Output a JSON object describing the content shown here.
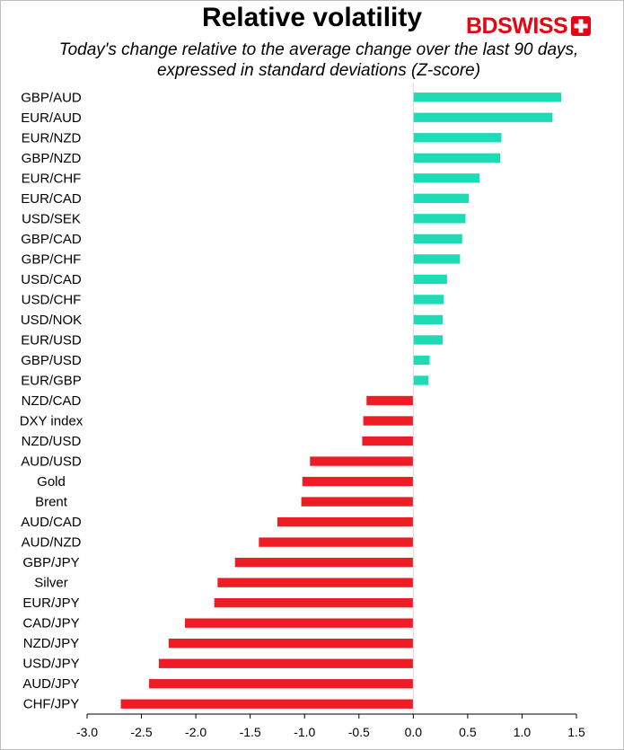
{
  "logo": {
    "text": "BDSWISS"
  },
  "colors": {
    "positive": "#1ddcb5",
    "negative": "#ee1c25",
    "brand": "#e30613"
  },
  "chart_data": {
    "type": "bar",
    "orientation": "horizontal",
    "title": "Relative volatility",
    "subtitle": "Today's change relative to the average change over the last 90 days, expressed in standard deviations (Z-score)",
    "xlabel": "",
    "ylabel": "",
    "xlim": [
      -3.0,
      1.5
    ],
    "xticks": [
      "-3.0",
      "-2.5",
      "-2.0",
      "-1.5",
      "-1.0",
      "-0.5",
      "0.0",
      "0.5",
      "1.0",
      "1.5"
    ],
    "grid": false,
    "legend": false,
    "categories": [
      "GBP/AUD",
      "EUR/AUD",
      "EUR/NZD",
      "GBP/NZD",
      "EUR/CHF",
      "EUR/CAD",
      "USD/SEK",
      "GBP/CAD",
      "GBP/CHF",
      "USD/CAD",
      "USD/CHF",
      "USD/NOK",
      "EUR/USD",
      "GBP/USD",
      "EUR/GBP",
      "NZD/CAD",
      "DXY index",
      "NZD/USD",
      "AUD/USD",
      "Gold",
      "Brent",
      "AUD/CAD",
      "AUD/NZD",
      "GBP/JPY",
      "Silver",
      "EUR/JPY",
      "CAD/JPY",
      "NZD/JPY",
      "USD/JPY",
      "AUD/JPY",
      "CHF/JPY"
    ],
    "values": [
      1.36,
      1.28,
      0.81,
      0.8,
      0.61,
      0.51,
      0.48,
      0.45,
      0.43,
      0.31,
      0.28,
      0.27,
      0.27,
      0.15,
      0.14,
      -0.43,
      -0.46,
      -0.47,
      -0.95,
      -1.02,
      -1.03,
      -1.25,
      -1.42,
      -1.64,
      -1.8,
      -1.83,
      -2.1,
      -2.25,
      -2.34,
      -2.43,
      -2.69
    ]
  }
}
